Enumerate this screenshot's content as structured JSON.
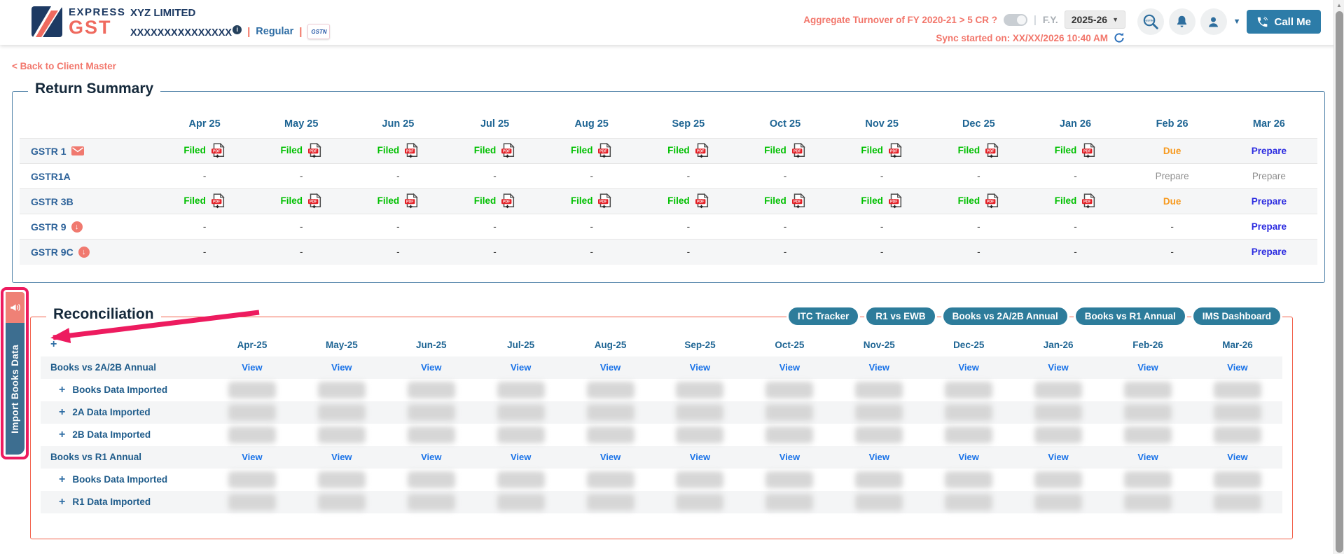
{
  "header": {
    "brand": {
      "express": "EXPRESS",
      "gst": "GST"
    },
    "company_name": "XYZ LIMITED",
    "gstin_masked": "XXXXXXXXXXXXXXX",
    "info_glyph": "i",
    "registration_type": "Regular",
    "gstn_badge": "GSTN",
    "turnover_label": "Aggregate Turnover of FY 2020-21 > 5 CR ?",
    "fy_label": "F.Y.",
    "fy_value": "2025-26",
    "call_me_label": "Call Me",
    "sync_status": "Sync started on: XX/XX/2026 10:40 AM"
  },
  "back_link": "< Back to Client Master",
  "return_summary": {
    "title": "Return Summary",
    "months": [
      "Apr 25",
      "May 25",
      "Jun 25",
      "Jul 25",
      "Aug 25",
      "Sep 25",
      "Oct 25",
      "Nov 25",
      "Dec 25",
      "Jan 26",
      "Feb 26",
      "Mar 26"
    ],
    "status_labels": {
      "filed": "Filed",
      "due": "Due",
      "prepare": "Prepare",
      "dash": "-"
    },
    "rows": [
      {
        "label": "GSTR 1",
        "icon": "envelope-icon",
        "cells": [
          "filed",
          "filed",
          "filed",
          "filed",
          "filed",
          "filed",
          "filed",
          "filed",
          "filed",
          "filed",
          "due",
          "prepare"
        ]
      },
      {
        "label": "GSTR1A",
        "icon": null,
        "cells": [
          "dash",
          "dash",
          "dash",
          "dash",
          "dash",
          "dash",
          "dash",
          "dash",
          "dash",
          "dash",
          "prepare_muted",
          "prepare_muted"
        ]
      },
      {
        "label": "GSTR 3B",
        "icon": null,
        "cells": [
          "filed",
          "filed",
          "filed",
          "filed",
          "filed",
          "filed",
          "filed",
          "filed",
          "filed",
          "filed",
          "due",
          "prepare"
        ]
      },
      {
        "label": "GSTR 9",
        "icon": "download-circle-icon",
        "cells": [
          "dash",
          "dash",
          "dash",
          "dash",
          "dash",
          "dash",
          "dash",
          "dash",
          "dash",
          "dash",
          "dash",
          "prepare"
        ]
      },
      {
        "label": "GSTR 9C",
        "icon": "download-circle-icon",
        "cells": [
          "dash",
          "dash",
          "dash",
          "dash",
          "dash",
          "dash",
          "dash",
          "dash",
          "dash",
          "dash",
          "dash",
          "prepare"
        ]
      }
    ]
  },
  "import_tab": {
    "label": "Import Books Data"
  },
  "reconciliation": {
    "title": "Reconciliation",
    "buttons": [
      "ITC Tracker",
      "R1 vs EWB",
      "Books vs 2A/2B Annual",
      "Books vs R1 Annual",
      "IMS Dashboard"
    ],
    "expand_all": "+",
    "months": [
      "Apr-25",
      "May-25",
      "Jun-25",
      "Jul-25",
      "Aug-25",
      "Sep-25",
      "Oct-25",
      "Nov-25",
      "Dec-25",
      "Jan-26",
      "Feb-26",
      "Mar-26"
    ],
    "view_label": "View",
    "rows": [
      {
        "label": "Books vs 2A/2B Annual",
        "type": "view"
      },
      {
        "label": "Books Data Imported",
        "type": "blurred"
      },
      {
        "label": "2A Data Imported",
        "type": "blurred"
      },
      {
        "label": "2B Data Imported",
        "type": "blurred"
      },
      {
        "label": "Books vs R1 Annual",
        "type": "view"
      },
      {
        "label": "Books Data Imported",
        "type": "blurred"
      },
      {
        "label": "R1 Data Imported",
        "type": "blurred"
      }
    ]
  },
  "colors": {
    "coral": "#f2766b",
    "navy": "#1d3a63",
    "steel_blue": "#2e6e9e",
    "teal_button": "#2d7c9b",
    "filed_green": "#00c000",
    "due_orange": "#f79a1f",
    "prepare_blue": "#2b2be0",
    "view_blue": "#1a73e8",
    "annotation_pink": "#ed1b5f",
    "tab_blue": "#3d6e90",
    "recon_border": "#f2604a",
    "summary_border": "#4f81a8"
  }
}
